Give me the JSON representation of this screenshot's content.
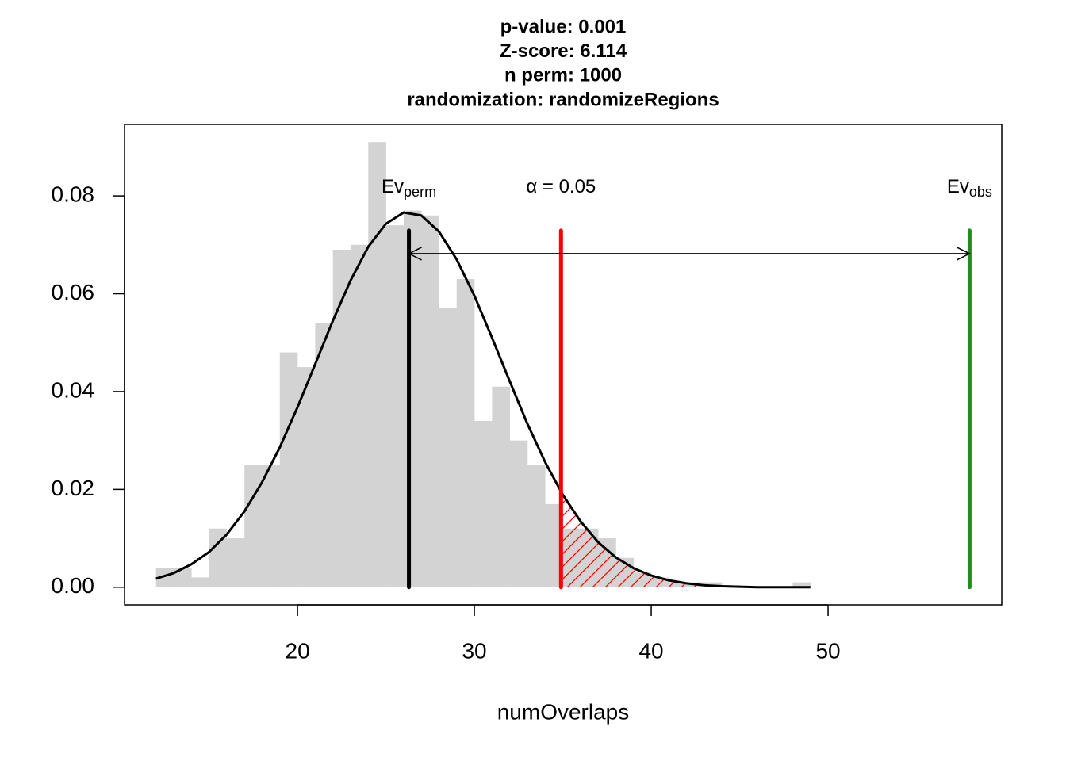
{
  "chart_data": {
    "type": "histogram",
    "title": [
      "p-value:  0.001",
      "Z-score:  6.114",
      "n perm:  1000",
      "randomization:  randomizeRegions"
    ],
    "xlabel": "numOverlaps",
    "color": "#d3d3d3",
    "bins": [
      12,
      13,
      14,
      15,
      16,
      17,
      18,
      19,
      20,
      21,
      22,
      23,
      24,
      25,
      26,
      27,
      28,
      29,
      30,
      31,
      32,
      33,
      34,
      35,
      36,
      37,
      38,
      39,
      40,
      41,
      42,
      43,
      44,
      45,
      46,
      47,
      48,
      49
    ],
    "counts": [
      0.004,
      0.004,
      0.002,
      0.012,
      0.01,
      0.025,
      0.025,
      0.048,
      0.045,
      0.054,
      0.069,
      0.07,
      0.091,
      0.074,
      0.077,
      0.076,
      0.057,
      0.063,
      0.034,
      0.041,
      0.03,
      0.025,
      0.017,
      0.012,
      0.012,
      0.01,
      0.006,
      0.003,
      0.002,
      0.001,
      0.001,
      0.001,
      0,
      0,
      0,
      0,
      0.001
    ],
    "curve": {
      "color": "#000000",
      "x": [
        12,
        13,
        14,
        15,
        16,
        17,
        18,
        19,
        20,
        21,
        22,
        23,
        24,
        25,
        26,
        27,
        28,
        29,
        30,
        31,
        32,
        33,
        34,
        35,
        36,
        37,
        38,
        39,
        40,
        41,
        42,
        43,
        44,
        45,
        46,
        47,
        48,
        49
      ],
      "values": [
        0.00175,
        0.0029,
        0.0047,
        0.0072,
        0.0108,
        0.0155,
        0.0215,
        0.0286,
        0.0368,
        0.0456,
        0.0545,
        0.0627,
        0.0696,
        0.0743,
        0.0766,
        0.076,
        0.0727,
        0.067,
        0.0596,
        0.051,
        0.0421,
        0.0334,
        0.0256,
        0.0189,
        0.0135,
        0.0092,
        0.0061,
        0.0039,
        0.0024,
        0.0014,
        0.0008,
        0.0004,
        0.0002,
        0.0001,
        0,
        0,
        0,
        0
      ]
    },
    "markers": [
      {
        "x": 26.3,
        "top": 0.0729,
        "color": "#000000",
        "label": "Ev",
        "label_sub": "perm"
      },
      {
        "x": 34.9,
        "top": 0.0729,
        "color": "#ff0000",
        "label": "α = 0.05"
      },
      {
        "x": 58,
        "top": 0.0729,
        "color": "#228b22",
        "label": "Ev",
        "label_sub": "obs"
      }
    ],
    "arrow": {
      "x": [
        26.3,
        58
      ],
      "y": 0.0682
    },
    "xlim": [
      10.22,
      59.82
    ],
    "ylim": [
      -0.0036,
      0.0946
    ],
    "xticks": [
      20,
      30,
      40,
      50
    ],
    "yticks": [
      {
        "value": 0,
        "label": "0.00"
      },
      0.02,
      0.04,
      0.06,
      0.08
    ]
  }
}
